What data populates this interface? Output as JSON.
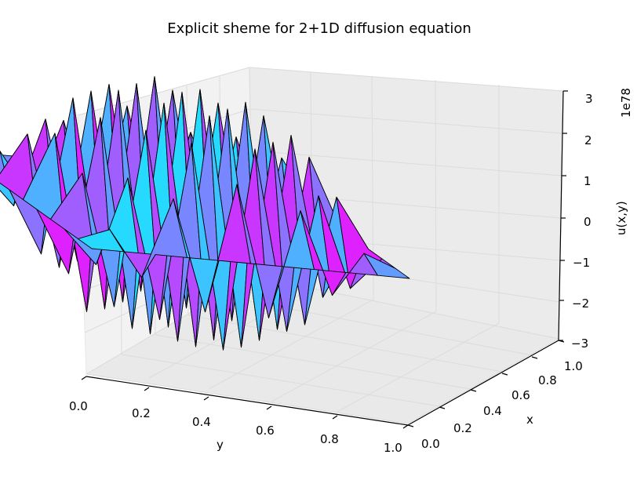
{
  "chart_data": {
    "type": "surface",
    "title": "Explicit sheme for 2+1D diffusion equation",
    "xlabel": "y",
    "ylabel": "x",
    "zlabel": "u(x,y)",
    "z_scale_label": "1e78",
    "xlim": [
      0.0,
      1.0
    ],
    "ylim": [
      0.0,
      1.0
    ],
    "zlim": [
      -3,
      3
    ],
    "x_ticks": [
      "0.0",
      "0.2",
      "0.4",
      "0.6",
      "0.8",
      "1.0"
    ],
    "y_ticks": [
      "0.0",
      "0.2",
      "0.4",
      "0.6",
      "0.8",
      "1.0"
    ],
    "z_ticks": [
      "3",
      "2",
      "1",
      "0",
      "−1",
      "−2",
      "−3"
    ],
    "grid": true,
    "colormap": "cool",
    "grid_values": [
      0.0,
      0.1,
      0.2,
      0.3,
      0.4,
      0.5,
      0.6,
      0.7,
      0.8,
      0.9,
      1.0
    ],
    "u_scaled": [
      [
        0,
        0,
        0,
        0,
        0,
        0,
        0,
        0,
        0,
        0,
        0
      ],
      [
        0,
        0.3,
        -0.8,
        1.2,
        -1.5,
        1.7,
        -1.5,
        1.2,
        -0.8,
        0.3,
        0
      ],
      [
        0,
        -0.8,
        1.4,
        -2.0,
        2.4,
        -2.6,
        2.4,
        -2.0,
        1.4,
        -0.8,
        0
      ],
      [
        0,
        1.2,
        -2.0,
        2.4,
        -2.7,
        2.9,
        -2.7,
        2.4,
        -2.0,
        1.2,
        0
      ],
      [
        0,
        -1.5,
        2.4,
        -2.7,
        2.9,
        -3.0,
        2.9,
        -2.7,
        2.4,
        -1.5,
        0
      ],
      [
        0,
        1.7,
        -2.6,
        2.9,
        -3.0,
        3.0,
        -3.0,
        2.9,
        -2.6,
        1.7,
        0
      ],
      [
        0,
        -1.5,
        2.4,
        -2.7,
        2.9,
        -3.0,
        2.9,
        -2.7,
        2.4,
        -1.5,
        0
      ],
      [
        0,
        1.2,
        -2.0,
        2.4,
        -2.7,
        2.9,
        -2.7,
        2.4,
        -2.0,
        1.2,
        0
      ],
      [
        0,
        -0.8,
        1.4,
        -2.0,
        2.4,
        -2.6,
        2.4,
        -2.0,
        1.4,
        -0.8,
        0
      ],
      [
        0,
        0.3,
        -0.8,
        1.2,
        -1.5,
        1.7,
        -1.5,
        1.2,
        -0.8,
        0.3,
        0
      ],
      [
        0,
        0,
        0,
        0,
        0,
        0,
        0,
        0,
        0,
        0,
        0
      ]
    ]
  }
}
